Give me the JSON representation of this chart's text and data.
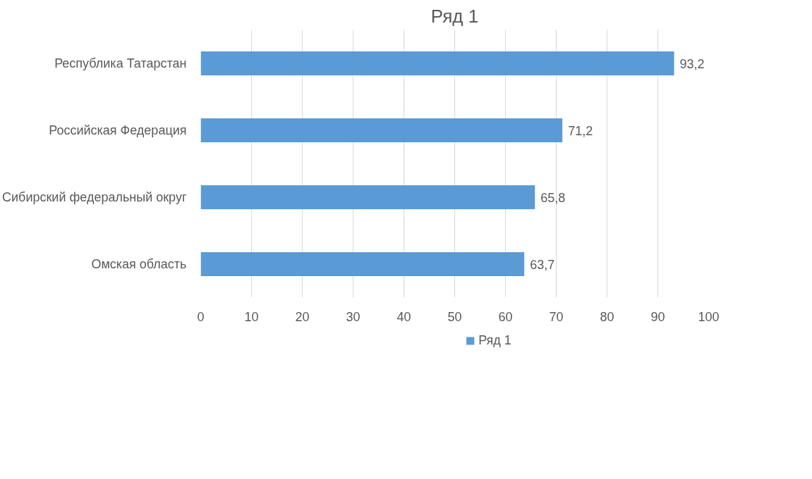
{
  "chart_data": {
    "type": "bar",
    "orientation": "horizontal",
    "title": "Ряд 1",
    "categories": [
      "Республика Татарстан",
      "Российская Федерация",
      "Сибирский федеральный округ",
      "Омская область"
    ],
    "series": [
      {
        "name": "Ряд 1",
        "color": "#5b9bd5",
        "values": [
          93.2,
          71.2,
          65.8,
          63.7
        ],
        "value_labels": [
          "93,2",
          "71,2",
          "65,8",
          "63,7"
        ]
      }
    ],
    "xlim": [
      0,
      100
    ],
    "xticks": [
      0,
      10,
      20,
      30,
      40,
      50,
      60,
      70,
      80,
      90,
      100
    ],
    "grid": "x",
    "legend": "bottom"
  }
}
